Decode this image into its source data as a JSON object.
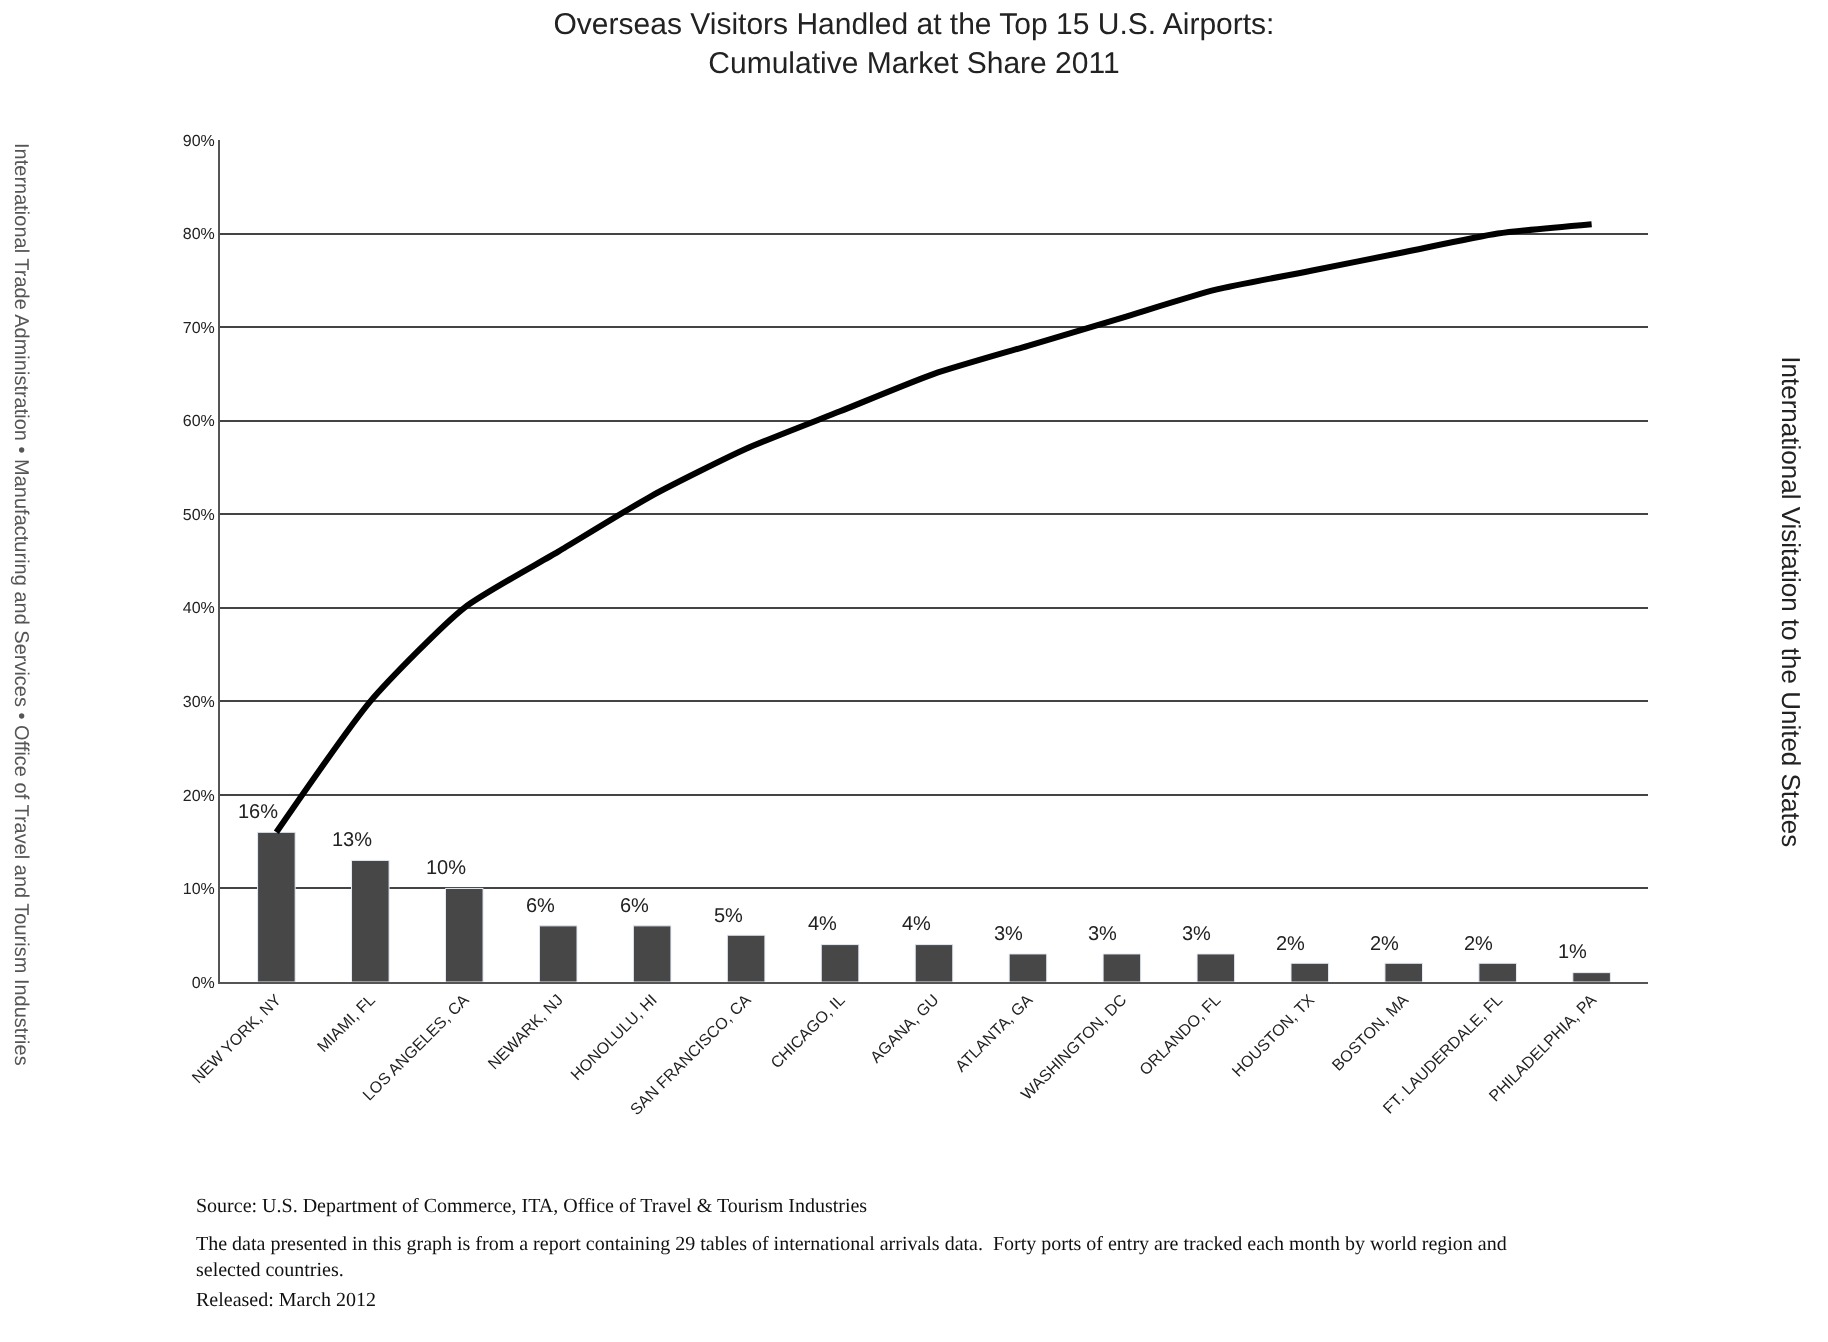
{
  "chart_data": {
    "type": "bar",
    "title": "Overseas Visitors Handled at the Top 15 U.S. Airports:\nCumulative Market Share 2011",
    "categories": [
      "NEW YORK, NY",
      "MIAMI, FL",
      "LOS ANGELES, CA",
      "NEWARK, NJ",
      "HONOLULU, HI",
      "SAN FRANCISCO, CA",
      "CHICAGO, IL",
      "AGANA, GU",
      "ATLANTA, GA",
      "WASHINGTON, DC",
      "ORLANDO, FL",
      "HOUSTON, TX",
      "BOSTON, MA",
      "FT. LAUDERDALE, FL",
      "PHILADELPHIA, PA"
    ],
    "series": [
      {
        "color": "#474747",
        "values": [
          16,
          13,
          10,
          6,
          6,
          5,
          4,
          4,
          3,
          3,
          3,
          2,
          2,
          2,
          1
        ],
        "value_labels": [
          "16%",
          "13%",
          "10%",
          "6%",
          "6%",
          "5%",
          "4%",
          "4%",
          "3%",
          "3%",
          "3%",
          "2%",
          "2%",
          "2%",
          "1%"
        ]
      },
      {
        "type": "line",
        "color": "#000000",
        "values": [
          16,
          30,
          40,
          46,
          52,
          57,
          61,
          65,
          68,
          71,
          74,
          76,
          78,
          80,
          81
        ]
      }
    ],
    "ylim": [
      0,
      90
    ],
    "yticks": [
      {
        "value": 0,
        "label": "0%"
      },
      {
        "value": 10,
        "label": "10%"
      },
      {
        "value": 20,
        "label": "20%"
      },
      {
        "value": 30,
        "label": "30%"
      },
      {
        "value": 40,
        "label": "40%"
      },
      {
        "value": 50,
        "label": "50%"
      },
      {
        "value": 60,
        "label": "60%"
      },
      {
        "value": 70,
        "label": "70%"
      },
      {
        "value": 80,
        "label": "80%"
      },
      {
        "value": 90,
        "label": "90%"
      }
    ],
    "grid": "y",
    "legend": false,
    "marker": "none",
    "line_style": "solid",
    "annotations": [
      "Source: U.S. Department of Commerce, ITA, Office of Travel & Tourism Industries",
      "The data presented in this graph is from a report containing 29 tables of international arrivals data.  Forty ports of entry are tracked each month by world region and selected countries.",
      "Released: March 2012",
      "International Trade Administration • Manufacturing and Services • Office of Travel and Tourism Industries",
      "International Visitation to the United States"
    ]
  }
}
